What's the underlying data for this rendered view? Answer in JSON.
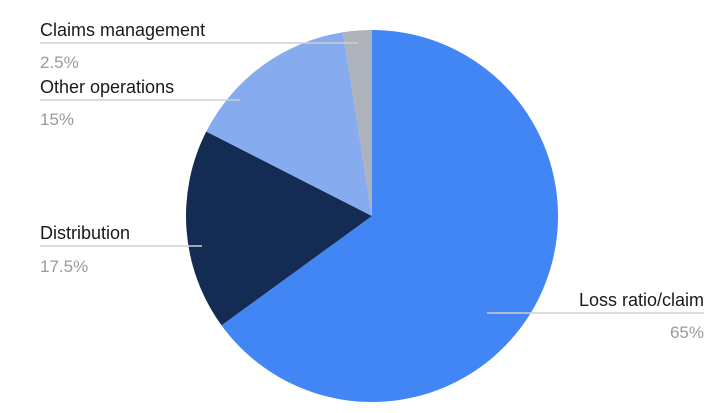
{
  "chart_data": {
    "type": "pie",
    "title": "",
    "slices": [
      {
        "label": "Loss ratio/claim",
        "value": 65,
        "value_label": "65%",
        "color": "#4285f4"
      },
      {
        "label": "Distribution",
        "value": 17.5,
        "value_label": "17.5%",
        "color": "#142c54"
      },
      {
        "label": "Other operations",
        "value": 15,
        "value_label": "15%",
        "color": "#86abee"
      },
      {
        "label": "Claims management",
        "value": 2.5,
        "value_label": "2.5%",
        "color": "#aeb2bb"
      }
    ],
    "start": "12 o'clock",
    "direction": "clockwise",
    "legend": "none"
  }
}
